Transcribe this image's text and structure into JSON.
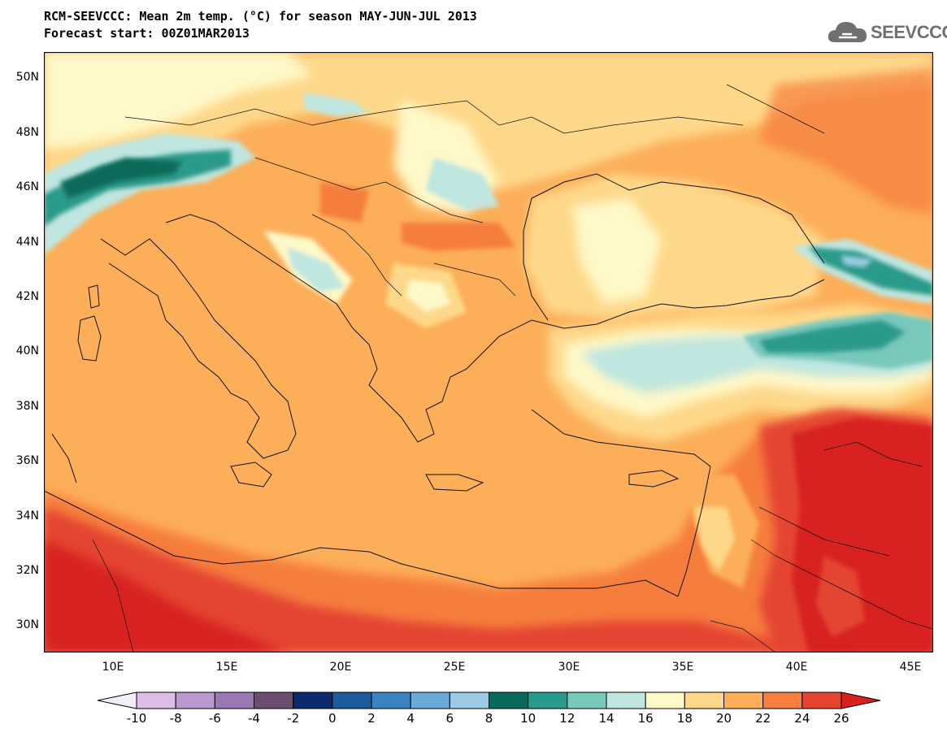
{
  "header": {
    "title": "RCM-SEEVCCC: Mean 2m temp. (°C) for season MAY-JUN-JUL 2013",
    "subtitle": "Forecast start: 00Z01MAR2013"
  },
  "logo": {
    "text": "SEEVCCC",
    "icon": "cloud-icon"
  },
  "map": {
    "lat_ticks": [
      "50N",
      "48N",
      "46N",
      "44N",
      "42N",
      "40N",
      "38N",
      "36N",
      "34N",
      "32N",
      "30N"
    ],
    "lon_ticks": [
      "10E",
      "15E",
      "20E",
      "25E",
      "30E",
      "35E",
      "40E",
      "45E"
    ]
  },
  "colorbar": {
    "labels": [
      "-10",
      "-8",
      "-6",
      "-4",
      "-2",
      "0",
      "2",
      "4",
      "6",
      "8",
      "10",
      "12",
      "14",
      "16",
      "18",
      "20",
      "22",
      "24",
      "26"
    ],
    "colors": [
      "#f4eefa",
      "#dcbfe6",
      "#b89ad0",
      "#9a78b4",
      "#6a4e6e",
      "#0b2a6e",
      "#1c5c9c",
      "#3a82c0",
      "#6aaad6",
      "#9ccae4",
      "#0a6a5a",
      "#2a9a8a",
      "#78c8bc",
      "#bfe6e0",
      "#fff8c8",
      "#fed88a",
      "#fcae58",
      "#f67e3e",
      "#e44430",
      "#d82020"
    ]
  }
}
